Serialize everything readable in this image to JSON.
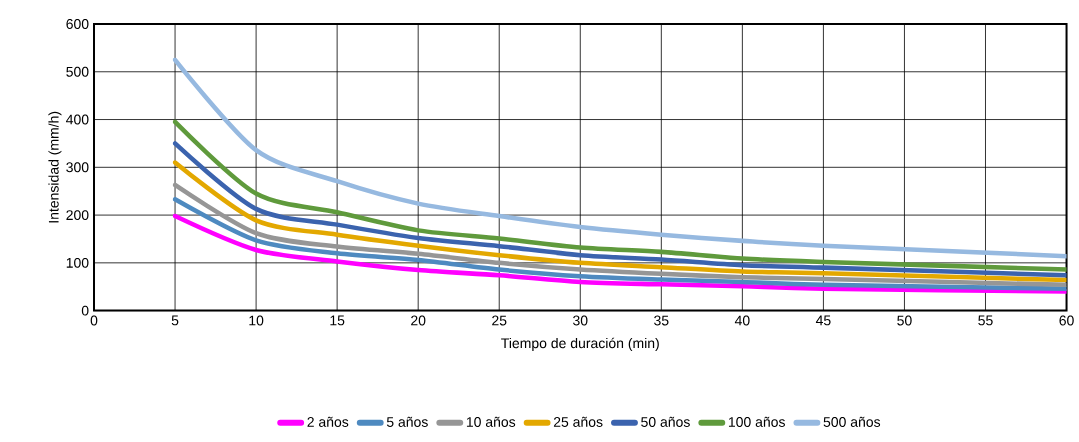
{
  "chart_data": {
    "type": "line",
    "xlabel": "Tiempo de duración (min)",
    "ylabel": "Intensidad (mm/h)",
    "x": [
      5,
      10,
      15,
      20,
      25,
      30,
      35,
      40,
      45,
      60
    ],
    "xlim": [
      0,
      60
    ],
    "xticks": [
      0,
      5,
      10,
      15,
      20,
      25,
      30,
      35,
      40,
      45,
      50,
      55,
      60
    ],
    "ylim": [
      0,
      600
    ],
    "yticks": [
      0,
      100,
      200,
      300,
      400,
      500,
      600
    ],
    "grid": true,
    "legend": "bottom",
    "marker": "none",
    "line_style": "solid",
    "series": [
      {
        "name": "2 años",
        "color": "#ff00ff",
        "values": [
          198,
          127,
          103,
          85,
          74,
          60,
          55,
          51,
          46,
          40
        ]
      },
      {
        "name": "5 años",
        "color": "#4e8ac0",
        "values": [
          233,
          147,
          120,
          106,
          86,
          72,
          65,
          60,
          54,
          46
        ]
      },
      {
        "name": "10 años",
        "color": "#969696",
        "values": [
          263,
          162,
          134,
          119,
          100,
          86,
          77,
          70,
          66,
          54
        ]
      },
      {
        "name": "25 años",
        "color": "#e3a800",
        "values": [
          310,
          189,
          159,
          136,
          116,
          100,
          91,
          82,
          78,
          64
        ]
      },
      {
        "name": "50 años",
        "color": "#3b63ae",
        "values": [
          350,
          213,
          180,
          152,
          135,
          116,
          107,
          95,
          90,
          74
        ]
      },
      {
        "name": "100 años",
        "color": "#5f9a3c",
        "values": [
          395,
          245,
          206,
          168,
          151,
          132,
          123,
          109,
          102,
          86
        ]
      },
      {
        "name": "500 años",
        "color": "#96b9e0",
        "values": [
          525,
          336,
          271,
          224,
          198,
          175,
          159,
          146,
          136,
          114
        ]
      }
    ]
  }
}
